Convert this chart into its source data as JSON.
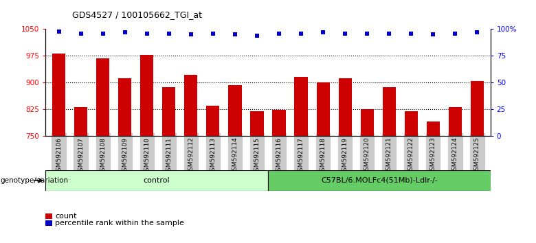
{
  "title": "GDS4527 / 100105662_TGI_at",
  "samples": [
    "GSM592106",
    "GSM592107",
    "GSM592108",
    "GSM592109",
    "GSM592110",
    "GSM592111",
    "GSM592112",
    "GSM592113",
    "GSM592114",
    "GSM592115",
    "GSM592116",
    "GSM592117",
    "GSM592118",
    "GSM592119",
    "GSM592120",
    "GSM592121",
    "GSM592122",
    "GSM592123",
    "GSM592124",
    "GSM592125"
  ],
  "counts": [
    982,
    831,
    968,
    912,
    978,
    888,
    922,
    836,
    893,
    819,
    824,
    917,
    901,
    912,
    825,
    887,
    820,
    790,
    831,
    904
  ],
  "percentile_ranks": [
    98,
    96,
    96,
    97,
    96,
    96,
    95,
    96,
    95,
    94,
    96,
    96,
    97,
    96,
    96,
    96,
    96,
    95,
    96,
    97
  ],
  "ylim_left": [
    750,
    1050
  ],
  "ylim_right": [
    0,
    100
  ],
  "yticks_left": [
    750,
    825,
    900,
    975,
    1050
  ],
  "yticks_right": [
    0,
    25,
    50,
    75,
    100
  ],
  "bar_color": "#cc0000",
  "dot_color": "#0000cc",
  "grid_color": "#000000",
  "n_control": 10,
  "n_treatment": 10,
  "control_label": "control",
  "treatment_label": "C57BL/6.MOLFc4(51Mb)-Ldlr-/-",
  "genotype_label": "genotype/variation",
  "legend_count_label": "count",
  "legend_pct_label": "percentile rank within the sample",
  "control_bg": "#ccffcc",
  "treatment_bg": "#66cc66",
  "xticklabel_bg": "#cccccc",
  "bar_width": 0.6
}
